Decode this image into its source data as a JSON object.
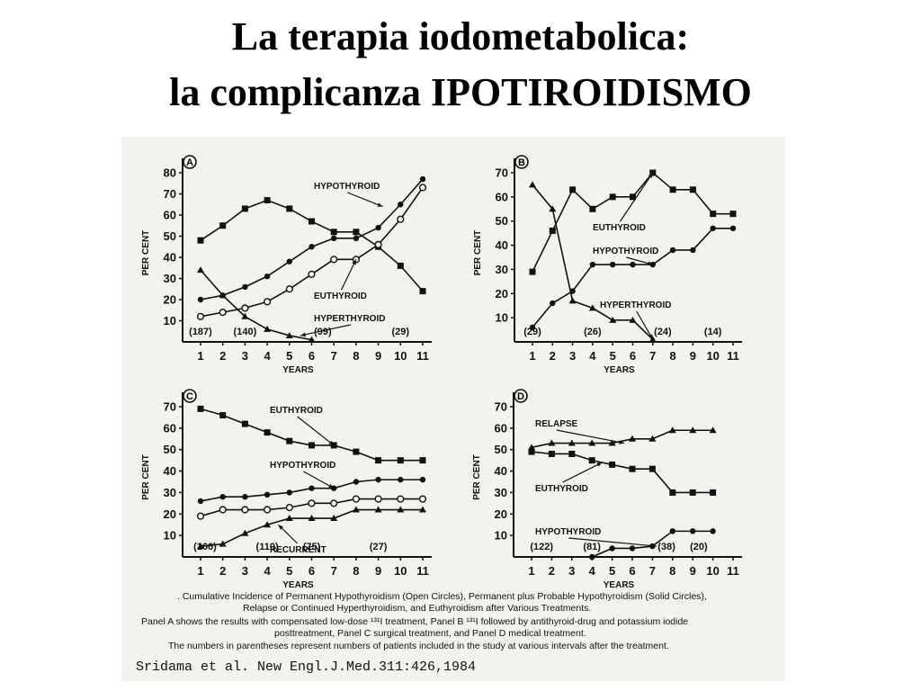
{
  "slide": {
    "title_line1": "La terapia iodometabolica:",
    "title_line2": "la complicanza IPOTIROIDISMO"
  },
  "chart_data": [
    {
      "panel": "A",
      "type": "line",
      "xlabel": "YEARS",
      "ylabel": "PER CENT",
      "xlim": [
        1,
        11
      ],
      "ylim": [
        0,
        80
      ],
      "xticks": [
        1,
        2,
        3,
        4,
        5,
        6,
        7,
        8,
        9,
        10,
        11
      ],
      "yticks": [
        10,
        20,
        30,
        40,
        50,
        60,
        70,
        80
      ],
      "series": [
        {
          "name": "HYPOTHYROID",
          "marker": "filled-square",
          "x": [
            1,
            2,
            3,
            4,
            5,
            6,
            7,
            8,
            9,
            10,
            11
          ],
          "y": [
            48,
            55,
            63,
            67,
            63,
            57,
            52,
            52,
            45,
            36,
            24
          ]
        },
        {
          "name": "",
          "marker": "filled-circle",
          "x": [
            1,
            2,
            3,
            4,
            5,
            6,
            7,
            8,
            9,
            10,
            11
          ],
          "y": [
            20,
            22,
            26,
            31,
            38,
            45,
            49,
            49,
            54,
            65,
            77
          ]
        },
        {
          "name": "EUTHYROID",
          "marker": "open-circle",
          "x": [
            1,
            2,
            3,
            4,
            5,
            6,
            7,
            8,
            9,
            10,
            11
          ],
          "y": [
            12,
            14,
            16,
            19,
            25,
            32,
            39,
            39,
            46,
            58,
            73
          ]
        },
        {
          "name": "HYPERTHYROID",
          "marker": "filled-triangle",
          "x": [
            1,
            2,
            3,
            4,
            5,
            6
          ],
          "y": [
            34,
            22,
            12,
            6,
            3,
            1
          ]
        }
      ],
      "annotations": [
        {
          "text": "HYPOTHYROID",
          "target": "series-0"
        },
        {
          "text": "EUTHYROID",
          "target": "series-2"
        },
        {
          "text": "HYPERTHYROID",
          "target": "series-3"
        }
      ],
      "patients": [
        {
          "x": 1,
          "label": "(187)"
        },
        {
          "x": 3,
          "label": "(140)"
        },
        {
          "x": 6.5,
          "label": "(99)"
        },
        {
          "x": 10,
          "label": "(29)"
        }
      ]
    },
    {
      "panel": "B",
      "type": "line",
      "xlabel": "YEARS",
      "ylabel": "PER CENT",
      "xlim": [
        1,
        11
      ],
      "ylim": [
        0,
        70
      ],
      "xticks": [
        1,
        2,
        3,
        4,
        5,
        6,
        7,
        8,
        9,
        10,
        11
      ],
      "yticks": [
        10,
        20,
        30,
        40,
        50,
        60,
        70
      ],
      "series": [
        {
          "name": "EUTHYROID",
          "marker": "filled-square",
          "x": [
            1,
            2,
            3,
            4,
            5,
            6,
            7,
            8,
            9,
            10,
            11
          ],
          "y": [
            29,
            46,
            63,
            55,
            60,
            60,
            70,
            63,
            63,
            53,
            53
          ]
        },
        {
          "name": "HYPOTHYROID",
          "marker": "filled-circle",
          "x": [
            1,
            2,
            3,
            4,
            5,
            6,
            7,
            8,
            9,
            10,
            11
          ],
          "y": [
            6,
            16,
            21,
            32,
            32,
            32,
            32,
            38,
            38,
            47,
            47
          ]
        },
        {
          "name": "HYPERTHYROID",
          "marker": "filled-triangle",
          "x": [
            1,
            2,
            3,
            4,
            5,
            6,
            7
          ],
          "y": [
            65,
            55,
            17,
            14,
            9,
            9,
            1
          ]
        }
      ],
      "annotations": [
        {
          "text": "EUTHYROID",
          "target": "series-0"
        },
        {
          "text": "HYPOTHYROID",
          "target": "series-1"
        },
        {
          "text": "HYPERTHYROID",
          "target": "series-2"
        }
      ],
      "patients": [
        {
          "x": 1,
          "label": "(29)"
        },
        {
          "x": 4,
          "label": "(26)"
        },
        {
          "x": 7.5,
          "label": "(24)"
        },
        {
          "x": 10,
          "label": "(14)"
        }
      ]
    },
    {
      "panel": "C",
      "type": "line",
      "xlabel": "YEARS",
      "ylabel": "PER CENT",
      "xlim": [
        1,
        11
      ],
      "ylim": [
        0,
        70
      ],
      "xticks": [
        1,
        2,
        3,
        4,
        5,
        6,
        7,
        8,
        9,
        10,
        11
      ],
      "yticks": [
        10,
        20,
        30,
        40,
        50,
        60,
        70
      ],
      "series": [
        {
          "name": "EUTHYROID",
          "marker": "filled-square",
          "x": [
            1,
            2,
            3,
            4,
            5,
            6,
            7,
            8,
            9,
            10,
            11
          ],
          "y": [
            69,
            66,
            62,
            58,
            54,
            52,
            52,
            49,
            45,
            45,
            45
          ]
        },
        {
          "name": "HYPOTHYROID",
          "marker": "filled-circle",
          "x": [
            1,
            2,
            3,
            4,
            5,
            6,
            7,
            8,
            9,
            10,
            11
          ],
          "y": [
            26,
            28,
            28,
            29,
            30,
            32,
            32,
            35,
            36,
            36,
            36
          ]
        },
        {
          "name": "",
          "marker": "open-circle",
          "x": [
            1,
            2,
            3,
            4,
            5,
            6,
            7,
            8,
            9,
            10,
            11
          ],
          "y": [
            19,
            22,
            22,
            22,
            23,
            25,
            25,
            27,
            27,
            27,
            27
          ]
        },
        {
          "name": "RECURRENT",
          "marker": "filled-triangle",
          "x": [
            1,
            2,
            3,
            4,
            5,
            6,
            7,
            8,
            9,
            10,
            11
          ],
          "y": [
            5,
            6,
            11,
            15,
            18,
            18,
            18,
            22,
            22,
            22,
            22
          ]
        }
      ],
      "annotations": [
        {
          "text": "EUTHYROID",
          "target": "series-0"
        },
        {
          "text": "HYPOTHYROID",
          "target": "series-1"
        },
        {
          "text": "RECURRENT",
          "target": "series-3"
        }
      ],
      "patients": [
        {
          "x": 1.2,
          "label": "(166)"
        },
        {
          "x": 4,
          "label": "(110)"
        },
        {
          "x": 6,
          "label": "(75)"
        },
        {
          "x": 9,
          "label": "(27)"
        }
      ]
    },
    {
      "panel": "D",
      "type": "line",
      "xlabel": "YEARS",
      "ylabel": "PER CENT",
      "xlim": [
        1,
        11
      ],
      "ylim": [
        0,
        70
      ],
      "xticks": [
        1,
        2,
        3,
        4,
        5,
        6,
        7,
        8,
        9,
        10,
        11
      ],
      "yticks": [
        10,
        20,
        30,
        40,
        50,
        60,
        70
      ],
      "series": [
        {
          "name": "RELAPSE",
          "marker": "filled-triangle",
          "x": [
            1,
            2,
            3,
            4,
            5,
            6,
            7,
            8,
            9,
            10
          ],
          "y": [
            51,
            53,
            53,
            53,
            53,
            55,
            55,
            59,
            59,
            59
          ]
        },
        {
          "name": "EUTHYROID",
          "marker": "filled-square",
          "x": [
            1,
            2,
            3,
            4,
            5,
            6,
            7,
            8,
            9,
            10
          ],
          "y": [
            49,
            48,
            48,
            45,
            43,
            41,
            41,
            30,
            30,
            30
          ]
        },
        {
          "name": "HYPOTHYROID",
          "marker": "filled-circle",
          "x": [
            4,
            5,
            6,
            7,
            8,
            9,
            10
          ],
          "y": [
            0,
            4,
            4,
            5,
            12,
            12,
            12
          ]
        }
      ],
      "annotations": [
        {
          "text": "RELAPSE",
          "target": "series-0"
        },
        {
          "text": "EUTHYROID",
          "target": "series-1"
        },
        {
          "text": "HYPOTHYROID",
          "target": "series-2"
        }
      ],
      "patients": [
        {
          "x": 1.5,
          "label": "(122)"
        },
        {
          "x": 4,
          "label": "(81)"
        },
        {
          "x": 7.7,
          "label": "(38)"
        },
        {
          "x": 9.3,
          "label": "(20)"
        }
      ]
    }
  ],
  "caption": {
    "line1": ". Cumulative Incidence of Permanent Hypothyroidism (Open Circles), Permanent plus Probable Hypothyroidism (Solid Circles),",
    "line2": "Relapse or Continued Hyperthyroidism, and Euthyroidism after Various Treatments.",
    "line3": "Panel A shows the results with compensated low-dose ¹³¹I treatment, Panel B ¹³¹I followed by antithyroid-drug and potassium iodide",
    "line4": "posttreatment, Panel C surgical treatment, and Panel D medical treatment.",
    "line5": "The numbers in parentheses represent numbers of patients included in the study at various intervals after the treatment.",
    "citation": "Sridama et al. New Engl.J.Med.311:426,1984"
  }
}
